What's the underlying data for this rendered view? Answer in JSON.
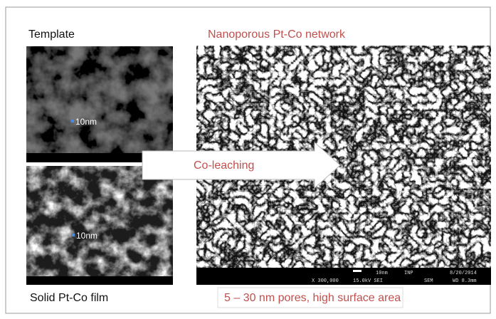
{
  "panels": {
    "template": {
      "label": "Template",
      "scale_label": "10nm"
    },
    "film": {
      "label": "Solid Pt-Co film",
      "scale_label": "10nm"
    },
    "network": {
      "label": "Nanoporous Pt-Co network",
      "caption": "5 – 30 nm pores, high surface area",
      "info_top": [
        "10nm",
        "INP",
        "8/20/2014"
      ],
      "info_bottom": [
        "X 300,000",
        "15.0kV SEI",
        "SEM",
        "WD 8.3mm"
      ]
    }
  },
  "arrow": {
    "label": "Co-leaching"
  }
}
